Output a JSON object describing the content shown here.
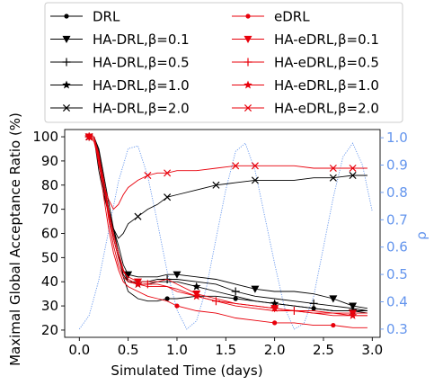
{
  "chart_data": {
    "type": "line",
    "xlabel": "Simulated Time (days)",
    "ylabel": "Maximal Global Acceptance Ratio (%)",
    "y2label": "ρ",
    "xlim": [
      -0.15,
      3.08
    ],
    "ylim": [
      17,
      103
    ],
    "y2lim": [
      0.27,
      1.03
    ],
    "xticks": [
      "0.0",
      "0.5",
      "1.0",
      "1.5",
      "2.0",
      "2.5",
      "3.0"
    ],
    "yticks": [
      "20",
      "30",
      "40",
      "50",
      "60",
      "70",
      "80",
      "90",
      "100"
    ],
    "y2ticks": [
      "0.3",
      "0.4",
      "0.5",
      "0.6",
      "0.7",
      "0.8",
      "0.9",
      "1.0"
    ],
    "grid": false,
    "legend_position": "top, above plot, 2 columns",
    "colors": {
      "drl": "#000000",
      "edrl": "#e8000b",
      "rho": "#6495ed"
    },
    "rho": {
      "x": [
        0.0,
        0.1,
        0.2,
        0.3,
        0.4,
        0.5,
        0.6,
        0.7,
        0.8,
        0.9,
        1.0,
        1.1,
        1.2,
        1.3,
        1.4,
        1.5,
        1.6,
        1.7,
        1.8,
        1.9,
        2.0,
        2.1,
        2.2,
        2.3,
        2.4,
        2.5,
        2.6,
        2.7,
        2.8,
        2.9,
        3.0
      ],
      "values": [
        0.3,
        0.35,
        0.48,
        0.66,
        0.84,
        0.96,
        0.97,
        0.86,
        0.69,
        0.51,
        0.37,
        0.3,
        0.33,
        0.45,
        0.63,
        0.81,
        0.95,
        0.98,
        0.88,
        0.71,
        0.54,
        0.38,
        0.3,
        0.32,
        0.42,
        0.6,
        0.78,
        0.93,
        0.98,
        0.9,
        0.73
      ]
    },
    "series": [
      {
        "name": "DRL",
        "color": "#000000",
        "marker": "dot",
        "x": [
          0.1,
          0.15,
          0.2,
          0.25,
          0.3,
          0.35,
          0.4,
          0.45,
          0.5,
          0.6,
          0.7,
          0.8,
          0.9,
          1.0,
          1.2,
          1.4,
          1.6,
          1.8,
          2.0,
          2.2,
          2.4,
          2.6,
          2.8,
          2.95
        ],
        "values": [
          100,
          100,
          95,
          84,
          73,
          62,
          52,
          42,
          36,
          33,
          32,
          32,
          33,
          33,
          34,
          34,
          33,
          32,
          31,
          30,
          29,
          28,
          28,
          28
        ]
      },
      {
        "name": "HA-DRL,β=0.1",
        "color": "#000000",
        "marker": "triangle-down",
        "x": [
          0.1,
          0.15,
          0.2,
          0.25,
          0.3,
          0.35,
          0.4,
          0.45,
          0.5,
          0.6,
          0.7,
          0.8,
          0.9,
          1.0,
          1.2,
          1.4,
          1.6,
          1.8,
          2.0,
          2.2,
          2.4,
          2.6,
          2.8,
          2.95
        ],
        "values": [
          100,
          100,
          93,
          80,
          70,
          62,
          55,
          47,
          43,
          42,
          42,
          42,
          43,
          43,
          42,
          41,
          39,
          37,
          36,
          36,
          35,
          33,
          30,
          29
        ]
      },
      {
        "name": "HA-DRL,β=0.5",
        "color": "#000000",
        "marker": "plus",
        "x": [
          0.1,
          0.15,
          0.2,
          0.25,
          0.3,
          0.35,
          0.4,
          0.45,
          0.5,
          0.6,
          0.7,
          0.8,
          0.9,
          1.0,
          1.2,
          1.4,
          1.6,
          1.8,
          2.0,
          2.2,
          2.4,
          2.6,
          2.8,
          2.95
        ],
        "values": [
          100,
          100,
          92,
          78,
          68,
          58,
          50,
          43,
          40,
          40,
          40,
          41,
          41,
          41,
          40,
          39,
          36,
          34,
          33,
          32,
          31,
          30,
          29,
          28
        ]
      },
      {
        "name": "HA-DRL,β=1.0",
        "color": "#000000",
        "marker": "star",
        "x": [
          0.1,
          0.15,
          0.2,
          0.25,
          0.3,
          0.35,
          0.4,
          0.45,
          0.5,
          0.6,
          0.7,
          0.8,
          0.9,
          1.0,
          1.2,
          1.4,
          1.6,
          1.8,
          2.0,
          2.2,
          2.4,
          2.6,
          2.8,
          2.95
        ],
        "values": [
          100,
          100,
          94,
          82,
          70,
          60,
          52,
          45,
          40,
          39,
          39,
          40,
          40,
          40,
          38,
          36,
          34,
          32,
          31,
          30,
          29,
          28,
          28,
          27
        ]
      },
      {
        "name": "HA-DRL,β=2.0",
        "color": "#000000",
        "marker": "x",
        "x": [
          0.1,
          0.15,
          0.2,
          0.25,
          0.3,
          0.35,
          0.4,
          0.45,
          0.5,
          0.6,
          0.7,
          0.8,
          0.9,
          1.0,
          1.2,
          1.4,
          1.6,
          1.8,
          2.0,
          2.2,
          2.4,
          2.6,
          2.8,
          2.95
        ],
        "values": [
          100,
          100,
          86,
          76,
          68,
          62,
          58,
          60,
          64,
          67,
          70,
          72,
          75,
          76,
          78,
          80,
          81,
          82,
          82,
          82,
          83,
          83,
          84,
          84
        ]
      },
      {
        "name": "eDRL",
        "color": "#e8000b",
        "marker": "dot",
        "x": [
          0.1,
          0.15,
          0.2,
          0.25,
          0.3,
          0.35,
          0.4,
          0.45,
          0.5,
          0.6,
          0.7,
          0.8,
          0.9,
          1.0,
          1.2,
          1.4,
          1.6,
          1.8,
          2.0,
          2.2,
          2.4,
          2.6,
          2.8,
          2.95
        ],
        "values": [
          100,
          98,
          90,
          75,
          62,
          52,
          45,
          40,
          38,
          36,
          34,
          33,
          32,
          30,
          28,
          27,
          25,
          24,
          23,
          23,
          22,
          22,
          21,
          21
        ]
      },
      {
        "name": "HA-eDRL,β=0.1",
        "color": "#e8000b",
        "marker": "triangle-down",
        "x": [
          0.1,
          0.15,
          0.2,
          0.25,
          0.3,
          0.35,
          0.4,
          0.45,
          0.5,
          0.6,
          0.7,
          0.8,
          0.9,
          1.0,
          1.2,
          1.4,
          1.6,
          1.8,
          2.0,
          2.2,
          2.4,
          2.6,
          2.8,
          2.95
        ],
        "values": [
          100,
          99,
          91,
          80,
          68,
          58,
          50,
          44,
          42,
          40,
          40,
          40,
          41,
          39,
          35,
          33,
          31,
          30,
          29,
          28,
          28,
          27,
          27,
          27
        ]
      },
      {
        "name": "HA-eDRL,β=0.5",
        "color": "#e8000b",
        "marker": "plus",
        "x": [
          0.1,
          0.15,
          0.2,
          0.25,
          0.3,
          0.35,
          0.4,
          0.45,
          0.5,
          0.6,
          0.7,
          0.8,
          0.9,
          1.0,
          1.2,
          1.4,
          1.6,
          1.8,
          2.0,
          2.2,
          2.4,
          2.6,
          2.8,
          2.95
        ],
        "values": [
          100,
          99,
          92,
          82,
          70,
          60,
          52,
          45,
          41,
          39,
          39,
          39,
          38,
          36,
          34,
          32,
          30,
          29,
          28,
          28,
          27,
          26,
          26,
          26
        ]
      },
      {
        "name": "HA-eDRL,β=1.0",
        "color": "#e8000b",
        "marker": "star",
        "x": [
          0.1,
          0.15,
          0.2,
          0.25,
          0.3,
          0.35,
          0.4,
          0.45,
          0.5,
          0.6,
          0.7,
          0.8,
          0.9,
          1.0,
          1.2,
          1.4,
          1.6,
          1.8,
          2.0,
          2.2,
          2.4,
          2.6,
          2.8,
          2.95
        ],
        "values": [
          100,
          100,
          93,
          80,
          66,
          55,
          47,
          42,
          40,
          39,
          38,
          38,
          38,
          37,
          34,
          32,
          31,
          30,
          29,
          28,
          27,
          27,
          26,
          26
        ]
      },
      {
        "name": "HA-eDRL,β=2.0",
        "color": "#e8000b",
        "marker": "x",
        "x": [
          0.1,
          0.15,
          0.2,
          0.25,
          0.3,
          0.35,
          0.4,
          0.45,
          0.5,
          0.6,
          0.7,
          0.8,
          0.9,
          1.0,
          1.2,
          1.4,
          1.6,
          1.8,
          2.0,
          2.2,
          2.4,
          2.6,
          2.8,
          2.95
        ],
        "values": [
          100,
          100,
          88,
          80,
          74,
          70,
          72,
          76,
          79,
          82,
          84,
          85,
          85,
          86,
          86,
          87,
          88,
          88,
          88,
          88,
          87,
          87,
          87,
          87
        ]
      }
    ]
  }
}
